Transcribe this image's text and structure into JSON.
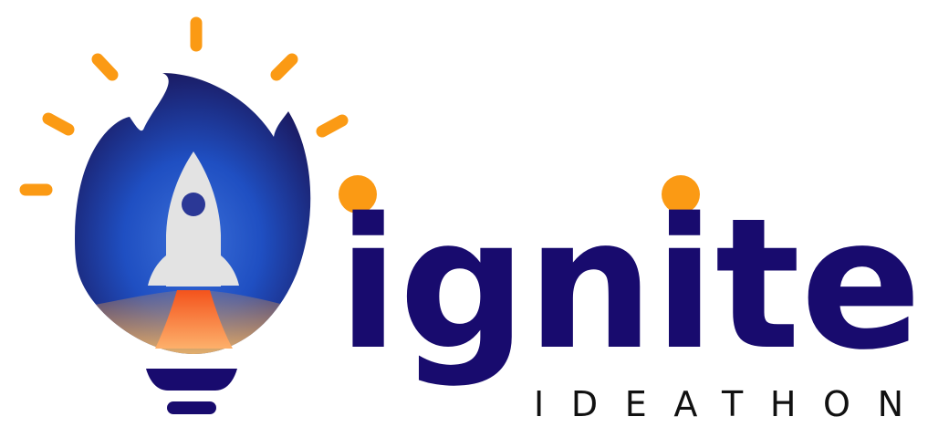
{
  "logo": {
    "wordmark": "ignite",
    "tagline": "IDEATHON",
    "icons": [
      "lightbulb-icon",
      "flame-icon",
      "rocket-icon"
    ],
    "colors": {
      "navy": "#180b6e",
      "orange": "#fb9a14",
      "flame_dark": "#1a1450",
      "flame_mid": "#1f3fa5",
      "flame_bright": "#1d55db",
      "rocket_body": "#e3e3e3",
      "rocket_window": "#2b3896",
      "exhaust": "#f76b1c",
      "glow": "#ffc46b"
    }
  }
}
